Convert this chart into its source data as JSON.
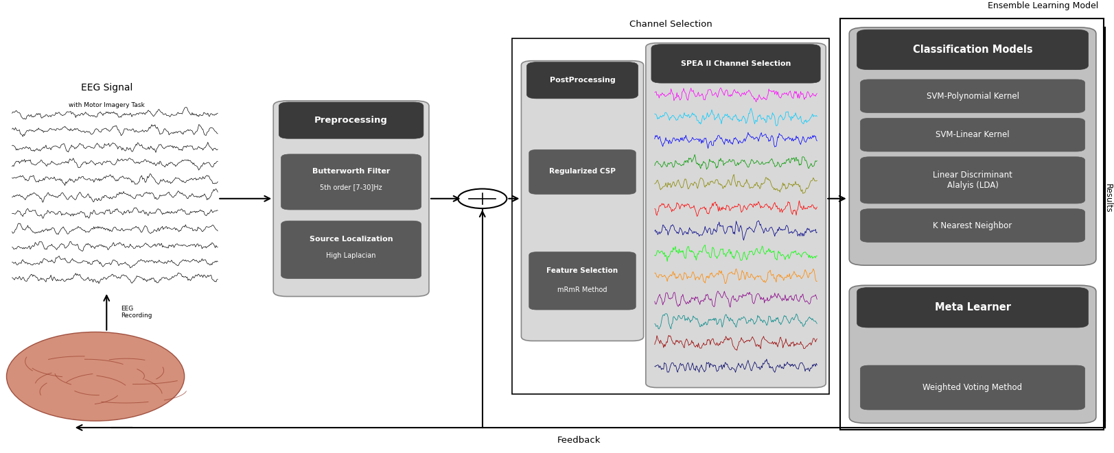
{
  "bg_color": "#ffffff",
  "title_text": "Ensemble Learning Model",
  "channel_selection_label": "Channel Selection",
  "feedback_label": "Feedback",
  "results_label": "Results",
  "eeg_signal_title": "EEG Signal",
  "eeg_signal_subtitle": "with Motor Imagery Task",
  "preprocessing_title": "Preprocessing",
  "postprocessing_title": "PostProcessing",
  "spea_title": "SPEA II Channel Selection",
  "classification_title": "Classification Models",
  "classification_items": [
    "SVM-Polynomial Kernel",
    "SVM-Linear Kernel",
    "Linear Discriminant\nAlalyis (LDA)",
    "K Nearest Neighbor"
  ],
  "meta_title": "Meta Learner",
  "meta_items": [
    "Weighted Voting Method"
  ],
  "dark_box_color": "#3a3a3a",
  "medium_box_color": "#5a5a5a",
  "light_box_color": "#c0c0c0",
  "lighter_box_color": "#d8d8d8",
  "arrow_color": "#000000",
  "fig_width": 16.24,
  "fig_height": 6.61
}
